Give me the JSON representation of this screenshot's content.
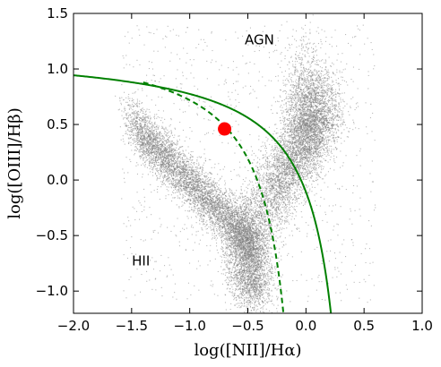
{
  "chart_data": {
    "type": "scatter",
    "title": "",
    "xlabel": "log([NII]/Hα)",
    "ylabel": "log([OIII]/Hβ)",
    "xlim": [
      -2.0,
      1.0
    ],
    "ylim": [
      -1.2,
      1.5
    ],
    "xticks": [
      -2.0,
      -1.5,
      -1.0,
      -0.5,
      0.0,
      0.5,
      1.0
    ],
    "xtick_labels": [
      "−2.0",
      "−1.5",
      "−1.0",
      "−0.5",
      "0.0",
      "0.5",
      "1.0"
    ],
    "yticks": [
      -1.0,
      -0.5,
      0.0,
      0.5,
      1.0,
      1.5
    ],
    "ytick_labels": [
      "−1.0",
      "−0.5",
      "0.0",
      "0.5",
      "1.0",
      "1.5"
    ],
    "grid": false,
    "legend": "none",
    "annotations": [
      {
        "text": "AGN",
        "x": -0.4,
        "y": 1.22
      },
      {
        "text": "HII",
        "x": -1.42,
        "y": -0.77
      }
    ],
    "curves": [
      {
        "style": "solid",
        "color": "#008000",
        "equation": "y = 0.61/(x - 0.47) + 1.19",
        "x_range": [
          -2.0,
          0.23
        ]
      },
      {
        "style": "dashed",
        "color": "#008000",
        "equation": "y = 0.61/(x - 0.05) + 1.3",
        "x_range": [
          -1.4,
          -0.18
        ]
      }
    ],
    "point_clouds": [
      {
        "color": "#7f7f7f",
        "description_free": true,
        "x_center": -0.5,
        "y_center": -0.55,
        "x_spread": 0.12,
        "y_spread": 0.28
      },
      {
        "color": "#7f7f7f",
        "x_center": -0.9,
        "y_center": 0.05,
        "x_spread": 0.28,
        "y_spread": 0.22
      },
      {
        "color": "#7f7f7f",
        "x_center": -0.05,
        "y_center": 0.35,
        "x_spread": 0.16,
        "y_spread": 0.35
      }
    ],
    "highlight_point": {
      "x": -0.7,
      "y": 0.46,
      "color": "#ff0000"
    }
  }
}
